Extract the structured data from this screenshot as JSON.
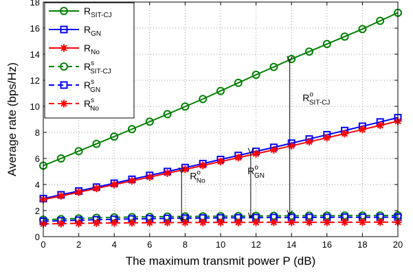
{
  "chart_data": {
    "type": "line",
    "xlabel": "The maximum transmit power P (dB)",
    "ylabel": "Average rate (bps/Hz)",
    "xlim": [
      0,
      20
    ],
    "ylim": [
      0,
      18
    ],
    "xticks": [
      0,
      2,
      4,
      6,
      8,
      10,
      12,
      14,
      16,
      18,
      20
    ],
    "yticks": [
      0,
      2,
      4,
      6,
      8,
      10,
      12,
      14,
      16,
      18
    ],
    "grid": true,
    "legend_position": "top-left",
    "x": [
      0,
      1,
      2,
      3,
      4,
      5,
      6,
      7,
      8,
      9,
      10,
      11,
      12,
      13,
      14,
      15,
      16,
      17,
      18,
      19,
      20
    ],
    "series": [
      {
        "name": "R_SIT-CJ",
        "legend": {
          "main": "R",
          "sup": "",
          "sub": "SIT-CJ"
        },
        "color": "#008000",
        "linestyle": "solid",
        "marker": "circle",
        "values": [
          5.45,
          6.0,
          6.56,
          7.12,
          7.68,
          8.25,
          8.82,
          9.4,
          9.98,
          10.56,
          11.18,
          11.8,
          12.42,
          13.02,
          13.63,
          14.2,
          14.78,
          15.35,
          15.93,
          16.56,
          17.18
        ]
      },
      {
        "name": "R_GN",
        "legend": {
          "main": "R",
          "sup": "",
          "sub": "GN"
        },
        "color": "#0000ff",
        "linestyle": "solid",
        "marker": "square",
        "values": [
          2.92,
          3.21,
          3.5,
          3.8,
          4.1,
          4.4,
          4.7,
          5.0,
          5.3,
          5.6,
          5.92,
          6.23,
          6.54,
          6.85,
          7.17,
          7.49,
          7.82,
          8.14,
          8.47,
          8.8,
          9.13
        ]
      },
      {
        "name": "R_No",
        "legend": {
          "main": "R",
          "sup": "",
          "sub": "No"
        },
        "color": "#ff0000",
        "linestyle": "solid",
        "marker": "asterisk",
        "values": [
          2.85,
          3.12,
          3.41,
          3.7,
          3.99,
          4.28,
          4.57,
          4.87,
          5.16,
          5.46,
          5.76,
          6.06,
          6.36,
          6.66,
          6.97,
          7.28,
          7.59,
          7.9,
          8.22,
          8.54,
          8.86
        ]
      },
      {
        "name": "R^s_SIT-CJ",
        "legend": {
          "main": "R",
          "sup": "s",
          "sub": "SIT-CJ"
        },
        "color": "#008000",
        "linestyle": "dashed",
        "marker": "circle",
        "values": [
          1.3,
          1.35,
          1.4,
          1.45,
          1.48,
          1.5,
          1.52,
          1.54,
          1.55,
          1.56,
          1.57,
          1.58,
          1.59,
          1.6,
          1.6,
          1.61,
          1.61,
          1.62,
          1.62,
          1.62,
          1.63
        ]
      },
      {
        "name": "R^s_GN",
        "legend": {
          "main": "R",
          "sup": "s",
          "sub": "GN"
        },
        "color": "#0000ff",
        "linestyle": "dashed",
        "marker": "square",
        "values": [
          1.18,
          1.22,
          1.26,
          1.3,
          1.33,
          1.36,
          1.38,
          1.4,
          1.42,
          1.43,
          1.44,
          1.45,
          1.46,
          1.47,
          1.47,
          1.48,
          1.48,
          1.49,
          1.49,
          1.49,
          1.5
        ]
      },
      {
        "name": "R^s_No",
        "legend": {
          "main": "R",
          "sup": "s",
          "sub": "No"
        },
        "color": "#ff0000",
        "linestyle": "dashed",
        "marker": "asterisk",
        "values": [
          0.98,
          1.0,
          1.02,
          1.04,
          1.05,
          1.06,
          1.07,
          1.08,
          1.08,
          1.09,
          1.09,
          1.09,
          1.1,
          1.1,
          1.1,
          1.1,
          1.1,
          1.1,
          1.11,
          1.11,
          1.11
        ]
      }
    ],
    "annotations": [
      {
        "label_main": "R",
        "label_sup": "o",
        "label_sub": "No",
        "arrow_x": 7.8,
        "arrow_y_from": 5.05,
        "arrow_y_to": 1.12,
        "text_x": 8.7,
        "text_y": 4.4
      },
      {
        "label_main": "R",
        "label_sup": "o",
        "label_sub": "GN",
        "arrow_x": 11.7,
        "arrow_y_from": 6.55,
        "arrow_y_to": 1.38,
        "text_x": 12.0,
        "text_y": 4.8
      },
      {
        "label_main": "R",
        "label_sup": "o",
        "label_sub": "SIT-CJ",
        "arrow_x": 13.9,
        "arrow_y_from": 13.6,
        "arrow_y_to": 1.55,
        "text_x": 15.4,
        "text_y": 10.4
      }
    ]
  }
}
